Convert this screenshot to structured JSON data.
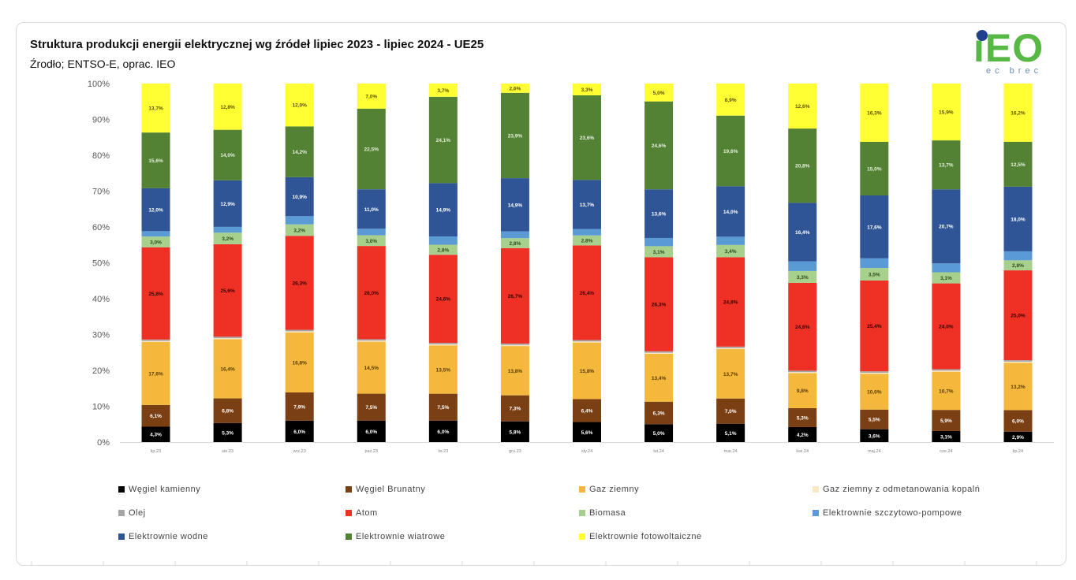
{
  "header": {
    "title": "Struktura produkcji energii elektrycznej wg źródeł lipiec 2023 - lipiec 2024  - UE25",
    "subtitle": "Źrodło; ENTSO-E, oprac. IEO"
  },
  "logo": {
    "main_text": "iEO",
    "sub_text": "ec brec",
    "color": "#57b846",
    "dot_color": "#1f3f8f"
  },
  "chart_data": {
    "type": "bar",
    "stacked": true,
    "stack_mode": "percent",
    "ylim": [
      0,
      100
    ],
    "yticks": [
      "0%",
      "10%",
      "20%",
      "30%",
      "40%",
      "50%",
      "60%",
      "70%",
      "80%",
      "90%",
      "100%"
    ],
    "categories": [
      "lip.23",
      "sie.23",
      "wrz.23",
      "paź.23",
      "lis.23",
      "gru.23",
      "sty.24",
      "lut.24",
      "mar.24",
      "kwi.24",
      "maj.24",
      "cze.24",
      "lip.24"
    ],
    "legend_position": "bottom",
    "series": [
      {
        "name": "Węgiel kamienny",
        "color": "#000000",
        "label_color": "#ffffff",
        "values": [
          4.3,
          5.3,
          6.0,
          6.0,
          6.0,
          5.8,
          5.6,
          5.0,
          5.1,
          4.2,
          3.6,
          3.1,
          2.9
        ],
        "labels": [
          "4,3%",
          "5,3%",
          "6,0%",
          "6,0%",
          "6,0%",
          "5,8%",
          "5,6%",
          "5,0%",
          "5,1%",
          "4,2%",
          "3,6%",
          "3,1%",
          "2,9%"
        ]
      },
      {
        "name": "Węgiel Brunatny",
        "color": "#7b3f14",
        "label_color": "#ffffff",
        "values": [
          6.1,
          6.8,
          7.9,
          7.5,
          7.5,
          7.3,
          6.4,
          6.3,
          7.0,
          5.3,
          5.5,
          5.9,
          6.0
        ],
        "labels": [
          "6,1%",
          "6,8%",
          "7,9%",
          "7,5%",
          "7,5%",
          "7,3%",
          "6,4%",
          "6,3%",
          "7,0%",
          "5,3%",
          "5,5%",
          "5,9%",
          "6,0%"
        ]
      },
      {
        "name": "Gaz ziemny",
        "color": "#f4b93c",
        "label_color": "#5a3a00",
        "values": [
          17.6,
          16.4,
          16.8,
          14.5,
          13.5,
          13.8,
          15.8,
          13.4,
          13.7,
          9.8,
          10.0,
          10.7,
          13.2
        ],
        "labels": [
          "17,6%",
          "16,4%",
          "16,8%",
          "14,5%",
          "13,5%",
          "13,8%",
          "15,8%",
          "13,4%",
          "13,7%",
          "9,8%",
          "10,0%",
          "10,7%",
          "13,2%"
        ]
      },
      {
        "name": "Gaz ziemny z odmetanowania kopalń",
        "color": "#fbe8c6",
        "values": [
          0.3,
          0.3,
          0.3,
          0.3,
          0.3,
          0.3,
          0.3,
          0.3,
          0.3,
          0.3,
          0.3,
          0.3,
          0.3
        ],
        "labels": []
      },
      {
        "name": "Olej",
        "color": "#a5a5a5",
        "values": [
          0.4,
          0.4,
          0.4,
          0.4,
          0.4,
          0.4,
          0.4,
          0.4,
          0.4,
          0.4,
          0.4,
          0.4,
          0.4
        ],
        "labels": []
      },
      {
        "name": "Atom",
        "color": "#ee3124",
        "label_color": "#3a0000",
        "values": [
          25.8,
          25.6,
          26.3,
          26.0,
          24.6,
          26.7,
          26.4,
          26.3,
          24.8,
          24.6,
          25.4,
          24.0,
          25.0
        ],
        "labels": [
          "25,8%",
          "25,6%",
          "26,3%",
          "26,0%",
          "24,6%",
          "26,7%",
          "26,4%",
          "26,3%",
          "24,8%",
          "24,6%",
          "25,4%",
          "24,0%",
          "25,0%"
        ]
      },
      {
        "name": "Biomasa",
        "color": "#a8d08d",
        "label_color": "#2e4a1a",
        "values": [
          3.0,
          3.2,
          3.2,
          3.0,
          2.8,
          2.8,
          2.8,
          3.1,
          3.4,
          3.3,
          3.5,
          3.1,
          2.8
        ],
        "labels": [
          "3,0%",
          "3,2%",
          "3,2%",
          "3,0%",
          "2,8%",
          "2,8%",
          "2,8%",
          "3,1%",
          "3,4%",
          "3,3%",
          "3,5%",
          "3,1%",
          "2,8%"
        ]
      },
      {
        "name": "Elektrownie szczytowo-pompowe",
        "color": "#5b9bd5",
        "values": [
          1.5,
          1.6,
          2.3,
          1.8,
          2.3,
          1.9,
          1.8,
          2.3,
          2.3,
          2.7,
          2.7,
          2.5,
          2.5
        ],
        "labels": []
      },
      {
        "name": "Elektrownie wodne",
        "color": "#2f5597",
        "label_color": "#ffffff",
        "values": [
          12.0,
          12.9,
          10.9,
          11.0,
          14.9,
          14.9,
          13.7,
          13.6,
          14.0,
          16.4,
          17.6,
          20.7,
          18.0
        ],
        "labels": [
          "12,0%",
          "12,9%",
          "10,9%",
          "11,0%",
          "14,9%",
          "14,9%",
          "13,7%",
          "13,6%",
          "14,0%",
          "16,4%",
          "17,6%",
          "20,7%",
          "18,0%"
        ]
      },
      {
        "name": "Elektrownie wiatrowe",
        "color": "#548235",
        "label_color": "#e6f0dc",
        "values": [
          15.6,
          14.0,
          14.2,
          22.5,
          24.1,
          23.9,
          23.6,
          24.6,
          19.6,
          20.8,
          15.0,
          13.7,
          12.5
        ],
        "labels": [
          "15,6%",
          "14,0%",
          "14,2%",
          "22,5%",
          "24,1%",
          "23,9%",
          "23,6%",
          "24,6%",
          "19,6%",
          "20,8%",
          "15,0%",
          "13,7%",
          "12,5%"
        ]
      },
      {
        "name": "Elektrownie fotowoltaiczne",
        "color": "#ffff33",
        "label_color": "#5a5200",
        "values": [
          13.7,
          12.8,
          12.0,
          7.0,
          3.7,
          2.6,
          3.3,
          5.0,
          8.9,
          12.6,
          16.3,
          15.9,
          16.2
        ],
        "labels": [
          "13,7%",
          "12,8%",
          "12,0%",
          "7,0%",
          "3,7%",
          "2,6%",
          "3,3%",
          "5,0%",
          "8,9%",
          "12,6%",
          "16,3%",
          "15,9%",
          "16,2%"
        ]
      }
    ]
  }
}
